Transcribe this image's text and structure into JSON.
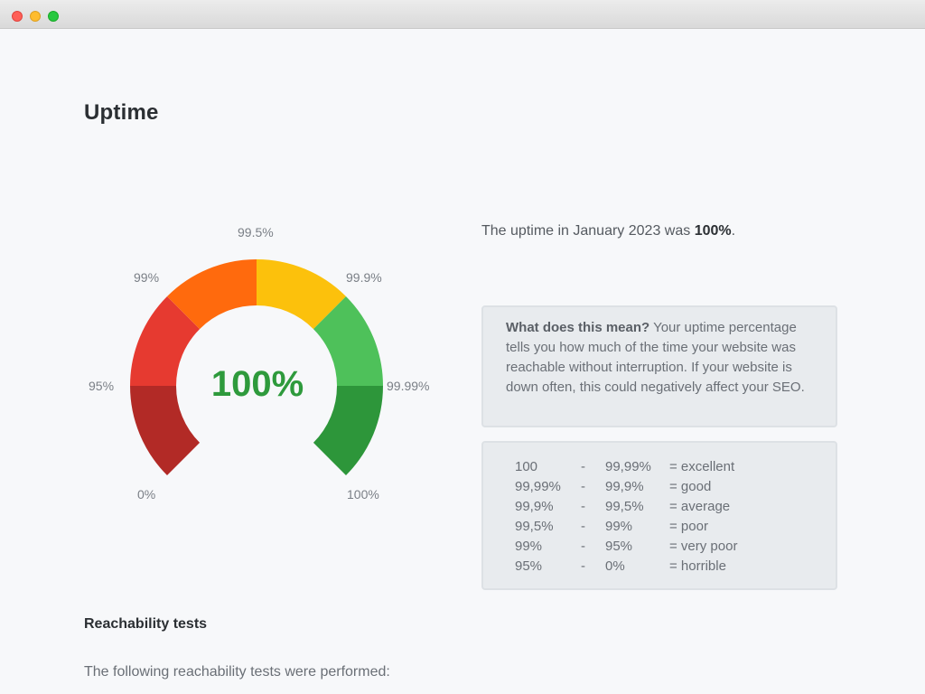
{
  "page": {
    "title": "Uptime"
  },
  "gauge": {
    "value_text": "100%",
    "level": 1.0,
    "ticks": {
      "t0": "0%",
      "t95": "95%",
      "t99": "99%",
      "t995": "99.5%",
      "t999": "99.9%",
      "t9999": "99.99%",
      "t100": "100%"
    },
    "segments": [
      {
        "label": "0% - 95%",
        "color": "#b22a26"
      },
      {
        "label": "95% - 99%",
        "color": "#e63a30"
      },
      {
        "label": "99% - 99.5%",
        "color": "#ff6a0d"
      },
      {
        "label": "99.5% - 99.9%",
        "color": "#fcc10c"
      },
      {
        "label": "99.9% - 99.99%",
        "color": "#4ec15a"
      },
      {
        "label": "99.99% - 100%",
        "color": "#2d963a"
      }
    ],
    "value_color": "#2e9a3c"
  },
  "summary": {
    "prefix": "The uptime in January 2023 was ",
    "value": "100%",
    "suffix": "."
  },
  "info": {
    "question": "What does this mean?",
    "text": " Your uptime percentage tells you how much of the time your website was reachable without interruption. If your website is down often, this could negatively affect your SEO."
  },
  "scale": [
    {
      "from": "100",
      "sep": "-",
      "to": "99,99%",
      "rating": "= excellent"
    },
    {
      "from": "99,99%",
      "sep": "-",
      "to": "99,9%",
      "rating": "= good"
    },
    {
      "from": "99,9%",
      "sep": "-",
      "to": "99,5%",
      "rating": "= average"
    },
    {
      "from": "99,5%",
      "sep": "-",
      "to": "99%",
      "rating": "= poor"
    },
    {
      "from": "99%",
      "sep": "-",
      "to": "95%",
      "rating": "= very poor"
    },
    {
      "from": "95%",
      "sep": "-",
      "to": "0%",
      "rating": "= horrible"
    }
  ],
  "reachability": {
    "title": "Reachability tests",
    "text": "The following reachability tests were performed:"
  },
  "window": {
    "close_color": "#ff5f57",
    "minimize_color": "#febc2e",
    "maximize_color": "#28c840"
  }
}
